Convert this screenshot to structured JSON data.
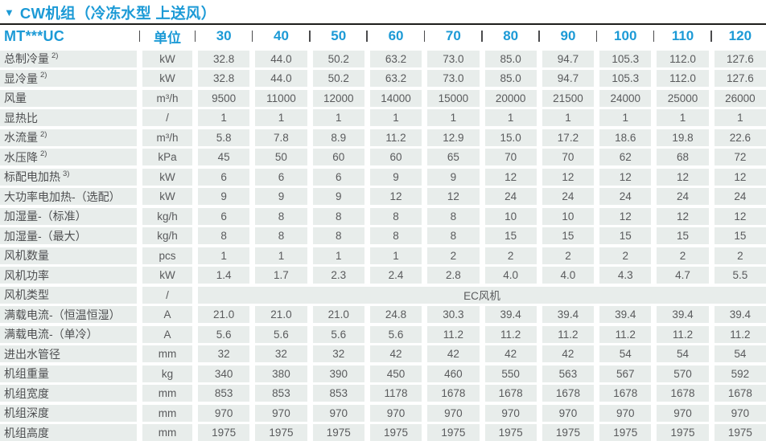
{
  "title_icon": "▼",
  "title": "CW机组（冷冻水型 上送风）",
  "colors": {
    "accent_blue": "#1c9ad6",
    "cell_background": "#e8edeb",
    "cell_text": "#595a5c",
    "rule_line": "#1d1d1b"
  },
  "header": {
    "model_label": "MT***UC",
    "unit_label": "单位",
    "models": [
      "30",
      "40",
      "50",
      "60",
      "70",
      "80",
      "90",
      "100",
      "110",
      "120"
    ]
  },
  "rows": [
    {
      "label": "总制冷量",
      "sup": "2)",
      "unit": "kW",
      "values": [
        "32.8",
        "44.0",
        "50.2",
        "63.2",
        "73.0",
        "85.0",
        "94.7",
        "105.3",
        "112.0",
        "127.6"
      ]
    },
    {
      "label": "显冷量",
      "sup": "2)",
      "unit": "kW",
      "values": [
        "32.8",
        "44.0",
        "50.2",
        "63.2",
        "73.0",
        "85.0",
        "94.7",
        "105.3",
        "112.0",
        "127.6"
      ]
    },
    {
      "label": "风量",
      "sup": "",
      "unit": "m³/h",
      "values": [
        "9500",
        "11000",
        "12000",
        "14000",
        "15000",
        "20000",
        "21500",
        "24000",
        "25000",
        "26000"
      ]
    },
    {
      "label": "显热比",
      "sup": "",
      "unit": "/",
      "values": [
        "1",
        "1",
        "1",
        "1",
        "1",
        "1",
        "1",
        "1",
        "1",
        "1"
      ]
    },
    {
      "label": "水流量",
      "sup": "2)",
      "unit": "m³/h",
      "values": [
        "5.8",
        "7.8",
        "8.9",
        "11.2",
        "12.9",
        "15.0",
        "17.2",
        "18.6",
        "19.8",
        "22.6"
      ]
    },
    {
      "label": "水压降",
      "sup": "2)",
      "unit": "kPa",
      "values": [
        "45",
        "50",
        "60",
        "60",
        "65",
        "70",
        "70",
        "62",
        "68",
        "72"
      ]
    },
    {
      "label": "标配电加热",
      "sup": "3)",
      "unit": "kW",
      "values": [
        "6",
        "6",
        "6",
        "9",
        "9",
        "12",
        "12",
        "12",
        "12",
        "12"
      ]
    },
    {
      "label": "大功率电加热-（选配）",
      "sup": "",
      "unit": "kW",
      "values": [
        "9",
        "9",
        "9",
        "12",
        "12",
        "24",
        "24",
        "24",
        "24",
        "24"
      ]
    },
    {
      "label": "加湿量-（标准）",
      "sup": "",
      "unit": "kg/h",
      "values": [
        "6",
        "8",
        "8",
        "8",
        "8",
        "10",
        "10",
        "12",
        "12",
        "12"
      ]
    },
    {
      "label": "加湿量-（最大）",
      "sup": "",
      "unit": "kg/h",
      "values": [
        "8",
        "8",
        "8",
        "8",
        "8",
        "15",
        "15",
        "15",
        "15",
        "15"
      ]
    },
    {
      "label": "风机数量",
      "sup": "",
      "unit": "pcs",
      "values": [
        "1",
        "1",
        "1",
        "1",
        "2",
        "2",
        "2",
        "2",
        "2",
        "2"
      ]
    },
    {
      "label": "风机功率",
      "sup": "",
      "unit": "kW",
      "values": [
        "1.4",
        "1.7",
        "2.3",
        "2.4",
        "2.8",
        "4.0",
        "4.0",
        "4.3",
        "4.7",
        "5.5"
      ]
    },
    {
      "label": "风机类型",
      "sup": "",
      "unit": "/",
      "span_value": "EC风机"
    },
    {
      "label": "满载电流-（恒温恒湿）",
      "sup": "",
      "unit": "A",
      "values": [
        "21.0",
        "21.0",
        "21.0",
        "24.8",
        "30.3",
        "39.4",
        "39.4",
        "39.4",
        "39.4",
        "39.4"
      ]
    },
    {
      "label": "满载电流-（单冷）",
      "sup": "",
      "unit": "A",
      "values": [
        "5.6",
        "5.6",
        "5.6",
        "5.6",
        "11.2",
        "11.2",
        "11.2",
        "11.2",
        "11.2",
        "11.2"
      ]
    },
    {
      "label": "进出水管径",
      "sup": "",
      "unit": "mm",
      "values": [
        "32",
        "32",
        "32",
        "42",
        "42",
        "42",
        "42",
        "54",
        "54",
        "54"
      ]
    },
    {
      "label": "机组重量",
      "sup": "",
      "unit": "kg",
      "values": [
        "340",
        "380",
        "390",
        "450",
        "460",
        "550",
        "563",
        "567",
        "570",
        "592"
      ]
    },
    {
      "label": "机组宽度",
      "sup": "",
      "unit": "mm",
      "values": [
        "853",
        "853",
        "853",
        "1178",
        "1678",
        "1678",
        "1678",
        "1678",
        "1678",
        "1678"
      ]
    },
    {
      "label": "机组深度",
      "sup": "",
      "unit": "mm",
      "values": [
        "970",
        "970",
        "970",
        "970",
        "970",
        "970",
        "970",
        "970",
        "970",
        "970"
      ]
    },
    {
      "label": "机组高度",
      "sup": "",
      "unit": "mm",
      "values": [
        "1975",
        "1975",
        "1975",
        "1975",
        "1975",
        "1975",
        "1975",
        "1975",
        "1975",
        "1975"
      ]
    }
  ]
}
